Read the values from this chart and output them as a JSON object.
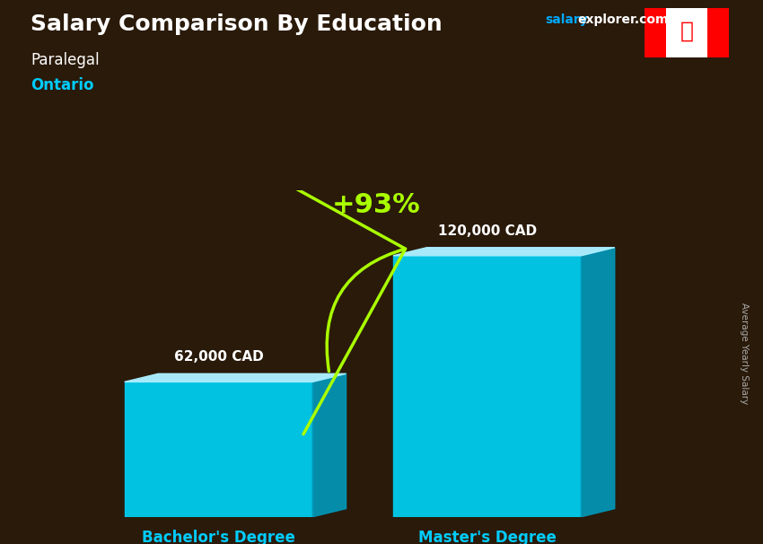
{
  "title": "Salary Comparison By Education",
  "subtitle_job": "Paralegal",
  "subtitle_location": "Ontario",
  "ylabel": "Average Yearly Salary",
  "categories": [
    "Bachelor's Degree",
    "Master's Degree"
  ],
  "values": [
    62000,
    120000
  ],
  "value_labels": [
    "62,000 CAD",
    "120,000 CAD"
  ],
  "pct_change": "+93%",
  "bar_front": "#00CCEE",
  "bar_top": "#AAEEFF",
  "bar_side": "#0099BB",
  "bg_color": "#2a1a0a",
  "title_color": "#FFFFFF",
  "subtitle_job_color": "#FFFFFF",
  "subtitle_location_color": "#00CCFF",
  "label_color": "#FFFFFF",
  "xticklabel_color": "#00CCFF",
  "pct_color": "#AAFF00",
  "arrow_color": "#AAFF00",
  "website_color_salary": "#00AAFF",
  "website_color_rest": "#FFFFFF",
  "ylabel_color": "#AAAAAA",
  "bar_width": 0.28,
  "bar_depth": 0.06,
  "bar_positions": [
    0.28,
    0.68
  ],
  "xlim": [
    0.0,
    1.0
  ],
  "ylim": [
    0,
    150000
  ],
  "fig_width": 8.5,
  "fig_height": 6.06,
  "dpi": 100
}
